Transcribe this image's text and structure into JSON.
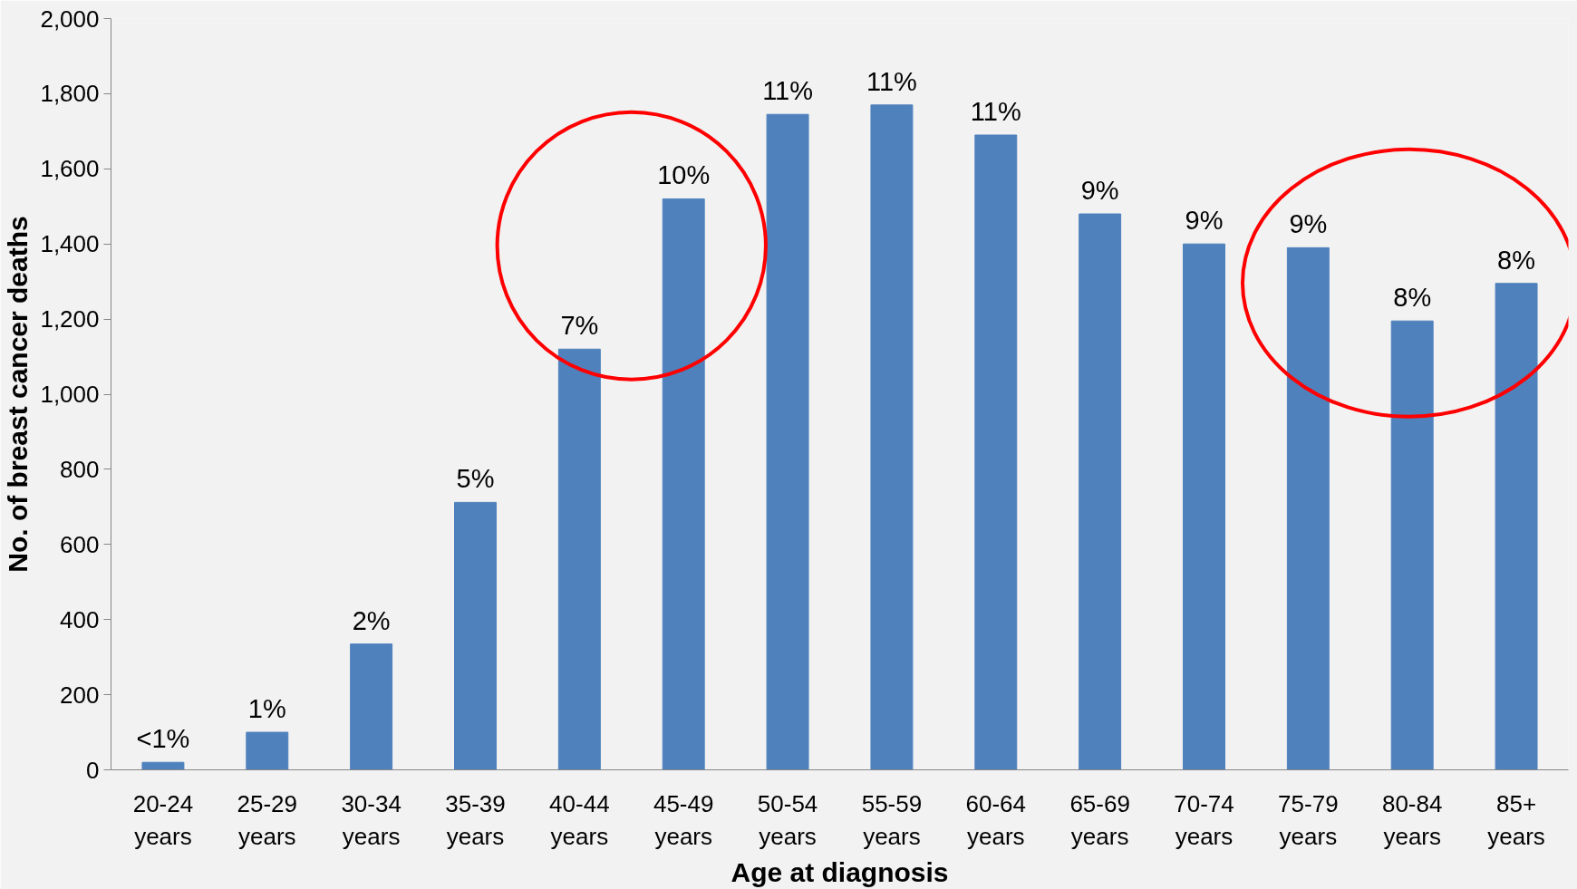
{
  "chart_data": {
    "type": "bar",
    "xlabel": "Age at diagnosis",
    "ylabel": "No. of breast cancer deaths",
    "categories": [
      "20-24 years",
      "25-29 years",
      "30-34 years",
      "35-39 years",
      "40-44 years",
      "45-49 years",
      "50-54 years",
      "55-59 years",
      "60-64 years",
      "65-69 years",
      "70-74 years",
      "75-79 years",
      "80-84 years",
      "85+ years"
    ],
    "values": [
      20,
      100,
      335,
      712,
      1120,
      1520,
      1745,
      1770,
      1690,
      1480,
      1400,
      1390,
      1195,
      1295
    ],
    "annotations": [
      {
        "text": "<1%",
        "x": "20-24 years",
        "y": 20
      },
      {
        "text": "1%",
        "x": "25-29 years",
        "y": 100
      },
      {
        "text": "2%",
        "x": "30-34 years",
        "y": 335
      },
      {
        "text": "5%",
        "x": "35-39 years",
        "y": 712
      },
      {
        "text": "7%",
        "x": "40-44 years",
        "y": 1120
      },
      {
        "text": "10%",
        "x": "45-49 years",
        "y": 1520
      },
      {
        "text": "11%",
        "x": "50-54 years",
        "y": 1745
      },
      {
        "text": "11%",
        "x": "55-59 years",
        "y": 1770
      },
      {
        "text": "11%",
        "x": "60-64 years",
        "y": 1690
      },
      {
        "text": "9%",
        "x": "65-69 years",
        "y": 1480
      },
      {
        "text": "9%",
        "x": "70-74 years",
        "y": 1400
      },
      {
        "text": "9%",
        "x": "75-79 years",
        "y": 1390
      },
      {
        "text": "8%",
        "x": "80-84 years",
        "y": 1195
      },
      {
        "text": "8%",
        "x": "85+ years",
        "y": 1295
      }
    ],
    "color": "#4f81bd",
    "ylim": [
      0,
      2000
    ],
    "yticks": [
      {
        "value": 0,
        "label": "0"
      },
      {
        "value": 200,
        "label": "200"
      },
      {
        "value": 400,
        "label": "400"
      },
      {
        "value": 600,
        "label": "600"
      },
      {
        "value": 800,
        "label": "800"
      },
      {
        "value": 1000,
        "label": "1,000"
      },
      {
        "value": 1200,
        "label": "1,200"
      },
      {
        "value": 1400,
        "label": "1,400"
      },
      {
        "value": 1600,
        "label": "1,600"
      },
      {
        "value": 1800,
        "label": "1,800"
      },
      {
        "value": 2000,
        "label": "2,000"
      }
    ],
    "grid": false
  }
}
